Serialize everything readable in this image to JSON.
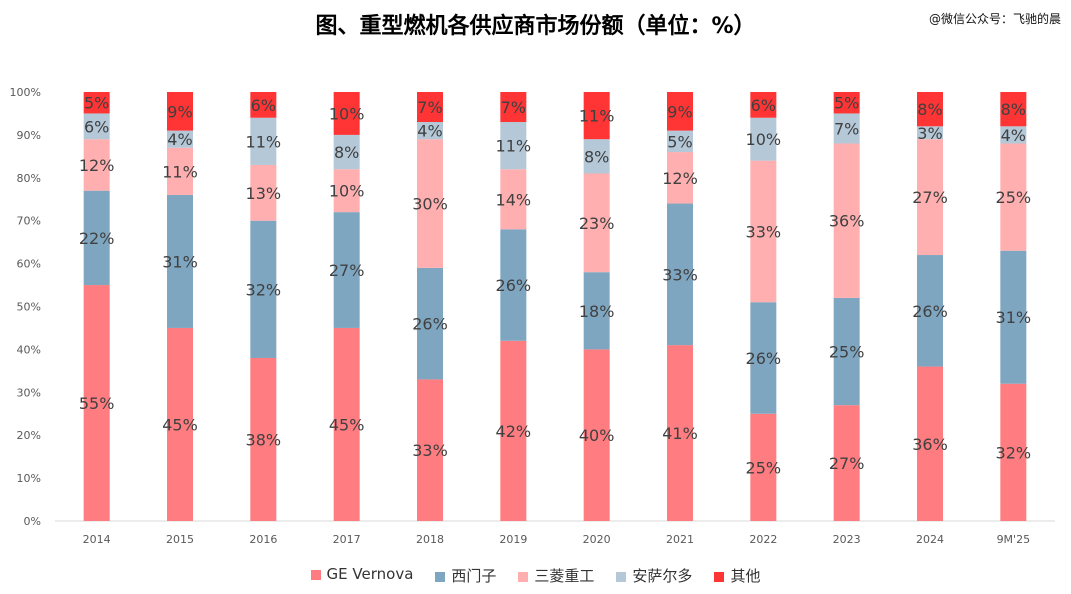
{
  "title": "图、重型燃机各供应商市场份额（单位：%）",
  "watermark": "@微信公众号：飞驰的晨",
  "chart_data": {
    "type": "bar",
    "stacked": true,
    "title": "图、重型燃机各供应商市场份额（单位：%）",
    "categories": [
      "2014",
      "2015",
      "2016",
      "2017",
      "2018",
      "2019",
      "2020",
      "2021",
      "2022",
      "2023",
      "2024",
      "9M'25"
    ],
    "ylim": [
      0,
      100
    ],
    "yticks": [
      "0%",
      "10%",
      "20%",
      "30%",
      "40%",
      "50%",
      "60%",
      "70%",
      "80%",
      "90%",
      "100%"
    ],
    "grid": false,
    "legend_position": "bottom",
    "series": [
      {
        "name": "GE Vernova",
        "color": "#FF7C80",
        "values": [
          55,
          45,
          38,
          45,
          33,
          42,
          40,
          41,
          25,
          27,
          36,
          32
        ]
      },
      {
        "name": "西门子",
        "color": "#7FA6C1",
        "values": [
          22,
          31,
          32,
          27,
          26,
          26,
          18,
          33,
          26,
          25,
          26,
          31
        ]
      },
      {
        "name": "三菱重工",
        "color": "#FFAFB0",
        "values": [
          12,
          11,
          13,
          10,
          30,
          14,
          23,
          12,
          33,
          36,
          27,
          25
        ]
      },
      {
        "name": "安萨尔多",
        "color": "#B4C8D8",
        "values": [
          6,
          4,
          11,
          8,
          4,
          11,
          8,
          5,
          10,
          7,
          3,
          4
        ]
      },
      {
        "name": "其他",
        "color": "#FF3535",
        "values": [
          5,
          9,
          6,
          10,
          7,
          7,
          11,
          9,
          6,
          5,
          8,
          8
        ]
      }
    ]
  }
}
